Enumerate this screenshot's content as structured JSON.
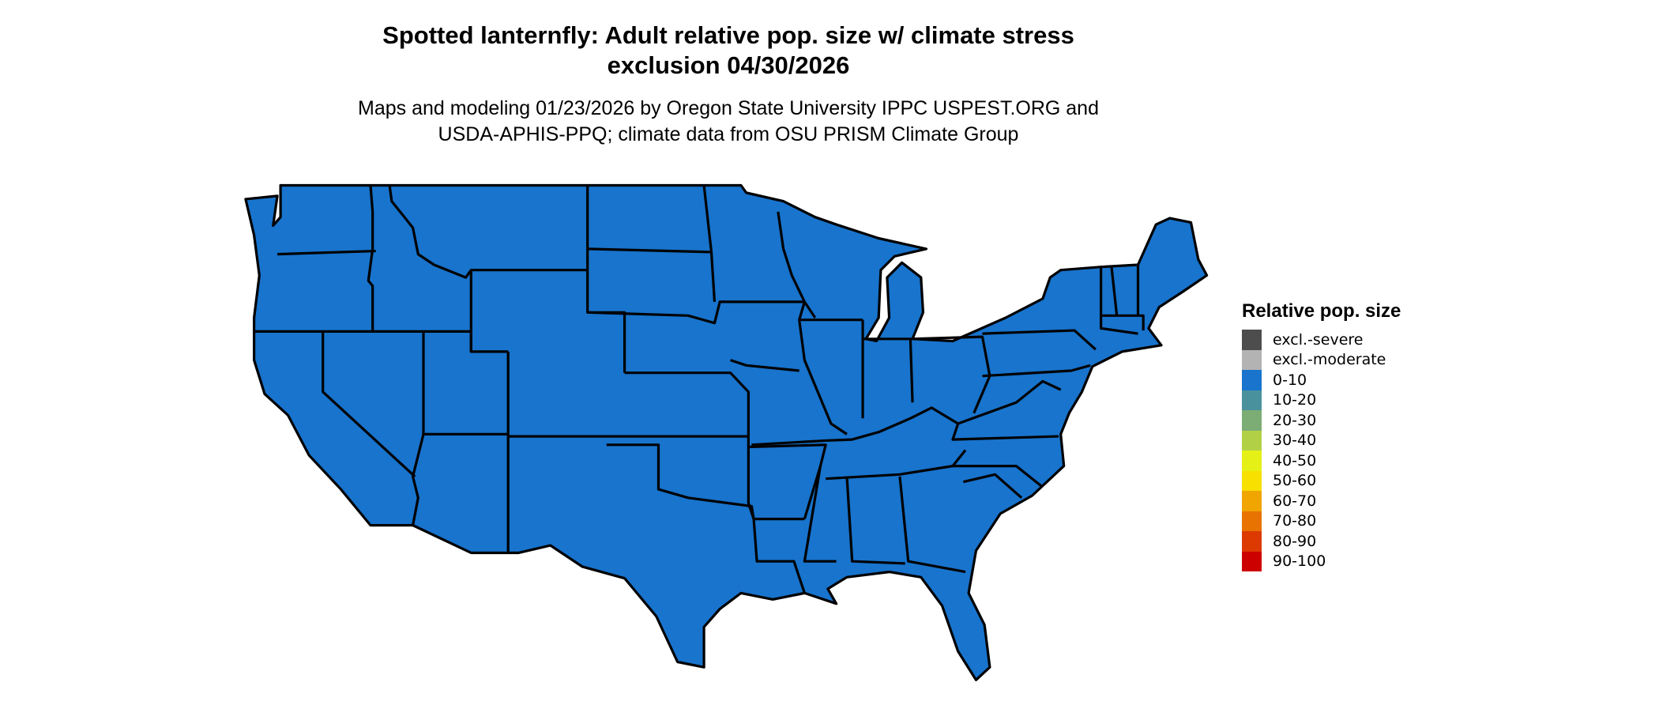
{
  "title": {
    "line1": "Spotted lanternfly: Adult relative pop. size w/ climate stress",
    "line2": "exclusion 04/30/2026"
  },
  "subtitle": {
    "line1": "Maps and modeling 01/23/2026 by Oregon State University IPPC USPEST.ORG and",
    "line2": "USDA-APHIS-PPQ; climate data from OSU PRISM Climate Group"
  },
  "map": {
    "region": "Contiguous United States",
    "fill_class": "0-10",
    "fill_color": "#1874cd",
    "border_color": "#000000"
  },
  "legend": {
    "title": "Relative pop. size",
    "items": [
      {
        "label": "excl.-severe",
        "color": "#4d4d4d"
      },
      {
        "label": "excl.-moderate",
        "color": "#b3b3b3"
      },
      {
        "label": "0-10",
        "color": "#1874cd"
      },
      {
        "label": "10-20",
        "color": "#4a919e"
      },
      {
        "label": "20-30",
        "color": "#7bad74"
      },
      {
        "label": "30-40",
        "color": "#b2d046"
      },
      {
        "label": "40-50",
        "color": "#e5f016"
      },
      {
        "label": "50-60",
        "color": "#f8e000"
      },
      {
        "label": "60-70",
        "color": "#f0a500"
      },
      {
        "label": "70-80",
        "color": "#e87300"
      },
      {
        "label": "80-90",
        "color": "#dc3a00"
      },
      {
        "label": "90-100",
        "color": "#cd0000"
      }
    ]
  }
}
